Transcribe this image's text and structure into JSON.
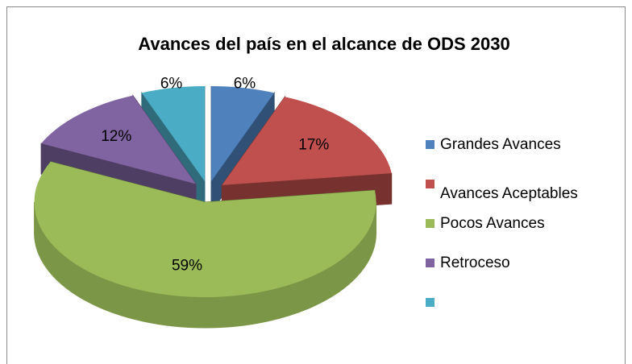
{
  "chart_data": {
    "type": "pie3d",
    "title": "Avances del país en el alcance de ODS 2030",
    "categories": [
      "Grandes Avances",
      "Avances Aceptables",
      "Pocos Avances",
      "Retroceso",
      null
    ],
    "values": [
      6,
      17,
      59,
      12,
      6
    ],
    "value_labels": [
      "6%",
      "17%",
      "59%",
      "12%",
      "6%"
    ],
    "colors": [
      "#4f81bd",
      "#c0504d",
      "#9bbb59",
      "#8064a2",
      "#4bacc6"
    ],
    "legend": "right"
  }
}
